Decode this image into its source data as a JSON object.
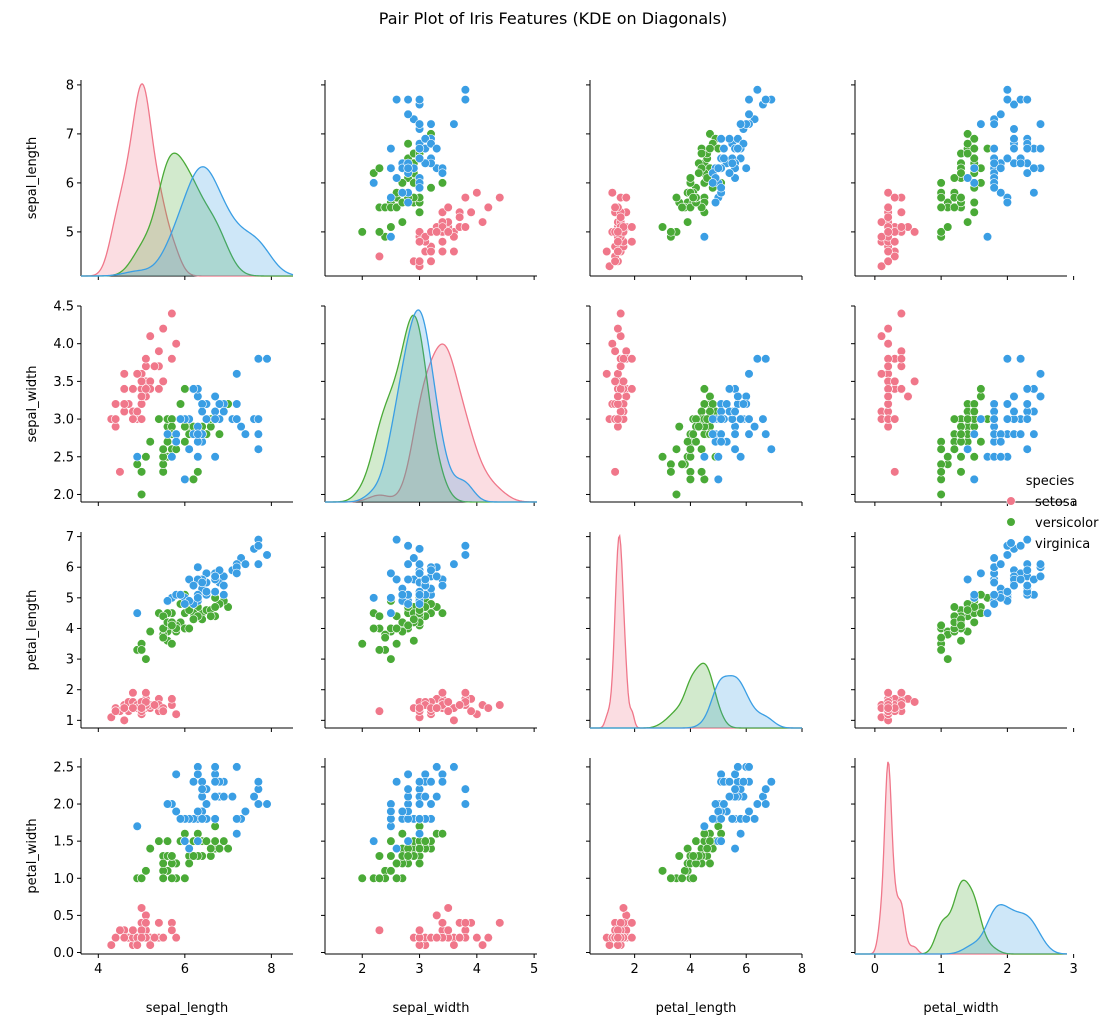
{
  "chart_data": {
    "type": "scatter",
    "title": "Pair Plot of Iris Features (KDE on Diagonals)",
    "diagonal": "kde",
    "variables": [
      "sepal_length",
      "sepal_width",
      "petal_length",
      "petal_width"
    ],
    "axes": {
      "sepal_length": {
        "lim": [
          3.6,
          8.5
        ],
        "ticks": [
          4,
          6,
          8
        ]
      },
      "sepal_width": {
        "lim": [
          1.35,
          5.05
        ],
        "ticks": [
          2,
          3,
          4,
          5
        ]
      },
      "petal_length": {
        "lim": [
          0.4,
          8.0
        ],
        "ticks": [
          2,
          4,
          6,
          8
        ]
      },
      "petal_width": {
        "lim": [
          -0.3,
          2.9
        ],
        "ticks": [
          0,
          1,
          2,
          3
        ]
      }
    },
    "row_axes": {
      "sepal_length": {
        "lim": [
          4.1,
          8.1
        ],
        "ticks": [
          "5",
          "6",
          "7",
          "8"
        ]
      },
      "sepal_width": {
        "lim": [
          1.9,
          4.5
        ],
        "ticks": [
          "2.0",
          "2.5",
          "3.0",
          "3.5",
          "4.0",
          "4.5"
        ]
      },
      "petal_length": {
        "lim": [
          0.75,
          7.15
        ],
        "ticks": [
          "1",
          "2",
          "3",
          "4",
          "5",
          "6",
          "7"
        ]
      },
      "petal_width": {
        "lim": [
          -0.02,
          2.62
        ],
        "ticks": [
          "0.0",
          "0.5",
          "1.0",
          "1.5",
          "2.0",
          "2.5"
        ]
      }
    },
    "legend": {
      "title": "species",
      "placement": "right"
    },
    "series": [
      {
        "name": "setosa",
        "color": "#f0778a",
        "points": [
          [
            5.1,
            3.5,
            1.4,
            0.2
          ],
          [
            4.9,
            3.0,
            1.4,
            0.2
          ],
          [
            4.7,
            3.2,
            1.3,
            0.2
          ],
          [
            4.6,
            3.1,
            1.5,
            0.2
          ],
          [
            5.0,
            3.6,
            1.4,
            0.2
          ],
          [
            5.4,
            3.9,
            1.7,
            0.4
          ],
          [
            4.6,
            3.4,
            1.4,
            0.3
          ],
          [
            5.0,
            3.4,
            1.5,
            0.2
          ],
          [
            4.4,
            2.9,
            1.4,
            0.2
          ],
          [
            4.9,
            3.1,
            1.5,
            0.1
          ],
          [
            5.4,
            3.7,
            1.5,
            0.2
          ],
          [
            4.8,
            3.4,
            1.6,
            0.2
          ],
          [
            4.8,
            3.0,
            1.4,
            0.1
          ],
          [
            4.3,
            3.0,
            1.1,
            0.1
          ],
          [
            5.8,
            4.0,
            1.2,
            0.2
          ],
          [
            5.7,
            4.4,
            1.5,
            0.4
          ],
          [
            5.4,
            3.9,
            1.3,
            0.4
          ],
          [
            5.1,
            3.5,
            1.4,
            0.3
          ],
          [
            5.7,
            3.8,
            1.7,
            0.3
          ],
          [
            5.1,
            3.8,
            1.5,
            0.3
          ],
          [
            5.4,
            3.4,
            1.7,
            0.2
          ],
          [
            5.1,
            3.7,
            1.5,
            0.4
          ],
          [
            4.6,
            3.6,
            1.0,
            0.2
          ],
          [
            5.1,
            3.3,
            1.7,
            0.5
          ],
          [
            4.8,
            3.4,
            1.9,
            0.2
          ],
          [
            5.0,
            3.0,
            1.6,
            0.2
          ],
          [
            5.0,
            3.4,
            1.6,
            0.4
          ],
          [
            5.2,
            3.5,
            1.5,
            0.2
          ],
          [
            5.2,
            3.4,
            1.4,
            0.2
          ],
          [
            4.7,
            3.2,
            1.6,
            0.2
          ],
          [
            4.8,
            3.1,
            1.6,
            0.2
          ],
          [
            5.4,
            3.4,
            1.5,
            0.4
          ],
          [
            5.2,
            4.1,
            1.5,
            0.1
          ],
          [
            5.5,
            4.2,
            1.4,
            0.2
          ],
          [
            4.9,
            3.1,
            1.5,
            0.2
          ],
          [
            5.0,
            3.2,
            1.2,
            0.2
          ],
          [
            5.5,
            3.5,
            1.3,
            0.2
          ],
          [
            4.9,
            3.6,
            1.4,
            0.1
          ],
          [
            4.4,
            3.0,
            1.3,
            0.2
          ],
          [
            5.1,
            3.4,
            1.5,
            0.2
          ],
          [
            5.0,
            3.5,
            1.3,
            0.3
          ],
          [
            4.5,
            2.3,
            1.3,
            0.3
          ],
          [
            4.4,
            3.2,
            1.3,
            0.2
          ],
          [
            5.0,
            3.5,
            1.6,
            0.6
          ],
          [
            5.1,
            3.8,
            1.9,
            0.4
          ],
          [
            4.8,
            3.0,
            1.4,
            0.3
          ],
          [
            5.1,
            3.8,
            1.6,
            0.2
          ],
          [
            4.6,
            3.2,
            1.4,
            0.2
          ],
          [
            5.3,
            3.7,
            1.5,
            0.2
          ],
          [
            5.0,
            3.3,
            1.4,
            0.2
          ]
        ]
      },
      {
        "name": "versicolor",
        "color": "#4aaa37",
        "points": [
          [
            7.0,
            3.2,
            4.7,
            1.4
          ],
          [
            6.4,
            3.2,
            4.5,
            1.5
          ],
          [
            6.9,
            3.1,
            4.9,
            1.5
          ],
          [
            5.5,
            2.3,
            4.0,
            1.3
          ],
          [
            6.5,
            2.8,
            4.6,
            1.5
          ],
          [
            5.7,
            2.8,
            4.5,
            1.3
          ],
          [
            6.3,
            3.3,
            4.7,
            1.6
          ],
          [
            4.9,
            2.4,
            3.3,
            1.0
          ],
          [
            6.6,
            2.9,
            4.6,
            1.3
          ],
          [
            5.2,
            2.7,
            3.9,
            1.4
          ],
          [
            5.0,
            2.0,
            3.5,
            1.0
          ],
          [
            5.9,
            3.0,
            4.2,
            1.5
          ],
          [
            6.0,
            2.2,
            4.0,
            1.0
          ],
          [
            6.1,
            2.9,
            4.7,
            1.4
          ],
          [
            5.6,
            2.9,
            3.6,
            1.3
          ],
          [
            6.7,
            3.1,
            4.4,
            1.4
          ],
          [
            5.6,
            3.0,
            4.5,
            1.5
          ],
          [
            5.8,
            2.7,
            4.1,
            1.0
          ],
          [
            6.2,
            2.2,
            4.5,
            1.5
          ],
          [
            5.6,
            2.5,
            3.9,
            1.1
          ],
          [
            5.9,
            3.2,
            4.8,
            1.8
          ],
          [
            6.1,
            2.8,
            4.0,
            1.3
          ],
          [
            6.3,
            2.5,
            4.9,
            1.5
          ],
          [
            6.1,
            2.8,
            4.7,
            1.2
          ],
          [
            6.4,
            2.9,
            4.3,
            1.3
          ],
          [
            6.6,
            3.0,
            4.4,
            1.4
          ],
          [
            6.8,
            2.8,
            4.8,
            1.4
          ],
          [
            6.7,
            3.0,
            5.0,
            1.7
          ],
          [
            6.0,
            2.9,
            4.5,
            1.5
          ],
          [
            5.7,
            2.6,
            3.5,
            1.0
          ],
          [
            5.5,
            2.4,
            3.8,
            1.1
          ],
          [
            5.5,
            2.4,
            3.7,
            1.0
          ],
          [
            5.8,
            2.7,
            3.9,
            1.2
          ],
          [
            6.0,
            2.7,
            5.1,
            1.6
          ],
          [
            5.4,
            3.0,
            4.5,
            1.5
          ],
          [
            6.0,
            3.4,
            4.5,
            1.6
          ],
          [
            6.7,
            3.1,
            4.7,
            1.5
          ],
          [
            6.3,
            2.3,
            4.4,
            1.3
          ],
          [
            5.6,
            3.0,
            4.1,
            1.3
          ],
          [
            5.5,
            2.5,
            4.0,
            1.3
          ],
          [
            5.5,
            2.6,
            4.4,
            1.2
          ],
          [
            6.1,
            3.0,
            4.6,
            1.4
          ],
          [
            5.8,
            2.6,
            4.0,
            1.2
          ],
          [
            5.0,
            2.3,
            3.3,
            1.0
          ],
          [
            5.6,
            2.7,
            4.2,
            1.3
          ],
          [
            5.7,
            3.0,
            4.2,
            1.2
          ],
          [
            5.7,
            2.9,
            4.2,
            1.3
          ],
          [
            6.2,
            2.9,
            4.3,
            1.3
          ],
          [
            5.1,
            2.5,
            3.0,
            1.1
          ],
          [
            5.7,
            2.8,
            4.1,
            1.3
          ]
        ]
      },
      {
        "name": "virginica",
        "color": "#3a9ee4",
        "points": [
          [
            6.3,
            3.3,
            6.0,
            2.5
          ],
          [
            5.8,
            2.7,
            5.1,
            1.9
          ],
          [
            7.1,
            3.0,
            5.9,
            2.1
          ],
          [
            6.3,
            2.9,
            5.6,
            1.8
          ],
          [
            6.5,
            3.0,
            5.8,
            2.2
          ],
          [
            7.6,
            3.0,
            6.6,
            2.1
          ],
          [
            4.9,
            2.5,
            4.5,
            1.7
          ],
          [
            7.3,
            2.9,
            6.3,
            1.8
          ],
          [
            6.7,
            2.5,
            5.8,
            1.8
          ],
          [
            7.2,
            3.6,
            6.1,
            2.5
          ],
          [
            6.5,
            3.2,
            5.1,
            2.0
          ],
          [
            6.4,
            2.7,
            5.3,
            1.9
          ],
          [
            6.8,
            3.0,
            5.5,
            2.1
          ],
          [
            5.7,
            2.5,
            5.0,
            2.0
          ],
          [
            5.8,
            2.8,
            5.1,
            2.4
          ],
          [
            6.4,
            3.2,
            5.3,
            2.3
          ],
          [
            6.5,
            3.0,
            5.5,
            1.8
          ],
          [
            7.7,
            3.8,
            6.7,
            2.2
          ],
          [
            7.7,
            2.6,
            6.9,
            2.3
          ],
          [
            6.0,
            2.2,
            5.0,
            1.5
          ],
          [
            6.9,
            3.2,
            5.7,
            2.3
          ],
          [
            5.6,
            2.8,
            4.9,
            2.0
          ],
          [
            7.7,
            2.8,
            6.7,
            2.0
          ],
          [
            6.3,
            2.7,
            4.9,
            1.8
          ],
          [
            6.7,
            3.3,
            5.7,
            2.1
          ],
          [
            7.2,
            3.2,
            6.0,
            1.8
          ],
          [
            6.2,
            2.8,
            4.8,
            1.8
          ],
          [
            6.1,
            3.0,
            4.9,
            1.8
          ],
          [
            6.4,
            2.8,
            5.6,
            2.1
          ],
          [
            7.2,
            3.0,
            5.8,
            1.6
          ],
          [
            7.4,
            2.8,
            6.1,
            1.9
          ],
          [
            7.9,
            3.8,
            6.4,
            2.0
          ],
          [
            6.4,
            2.8,
            5.6,
            2.2
          ],
          [
            6.3,
            2.8,
            5.1,
            1.5
          ],
          [
            6.1,
            2.6,
            5.6,
            1.4
          ],
          [
            7.7,
            3.0,
            6.1,
            2.3
          ],
          [
            6.3,
            3.4,
            5.6,
            2.4
          ],
          [
            6.4,
            3.1,
            5.5,
            1.8
          ],
          [
            6.0,
            3.0,
            4.8,
            1.8
          ],
          [
            6.9,
            3.1,
            5.4,
            2.1
          ],
          [
            6.7,
            3.1,
            5.6,
            2.4
          ],
          [
            6.9,
            3.1,
            5.1,
            2.3
          ],
          [
            5.8,
            2.7,
            5.1,
            1.9
          ],
          [
            6.8,
            3.2,
            5.9,
            2.3
          ],
          [
            6.7,
            3.3,
            5.7,
            2.5
          ],
          [
            6.7,
            3.0,
            5.2,
            2.3
          ],
          [
            6.3,
            2.5,
            5.0,
            1.9
          ],
          [
            6.5,
            3.0,
            5.2,
            2.0
          ],
          [
            6.2,
            3.4,
            5.4,
            2.3
          ],
          [
            5.9,
            3.0,
            5.1,
            1.8
          ]
        ]
      }
    ]
  }
}
